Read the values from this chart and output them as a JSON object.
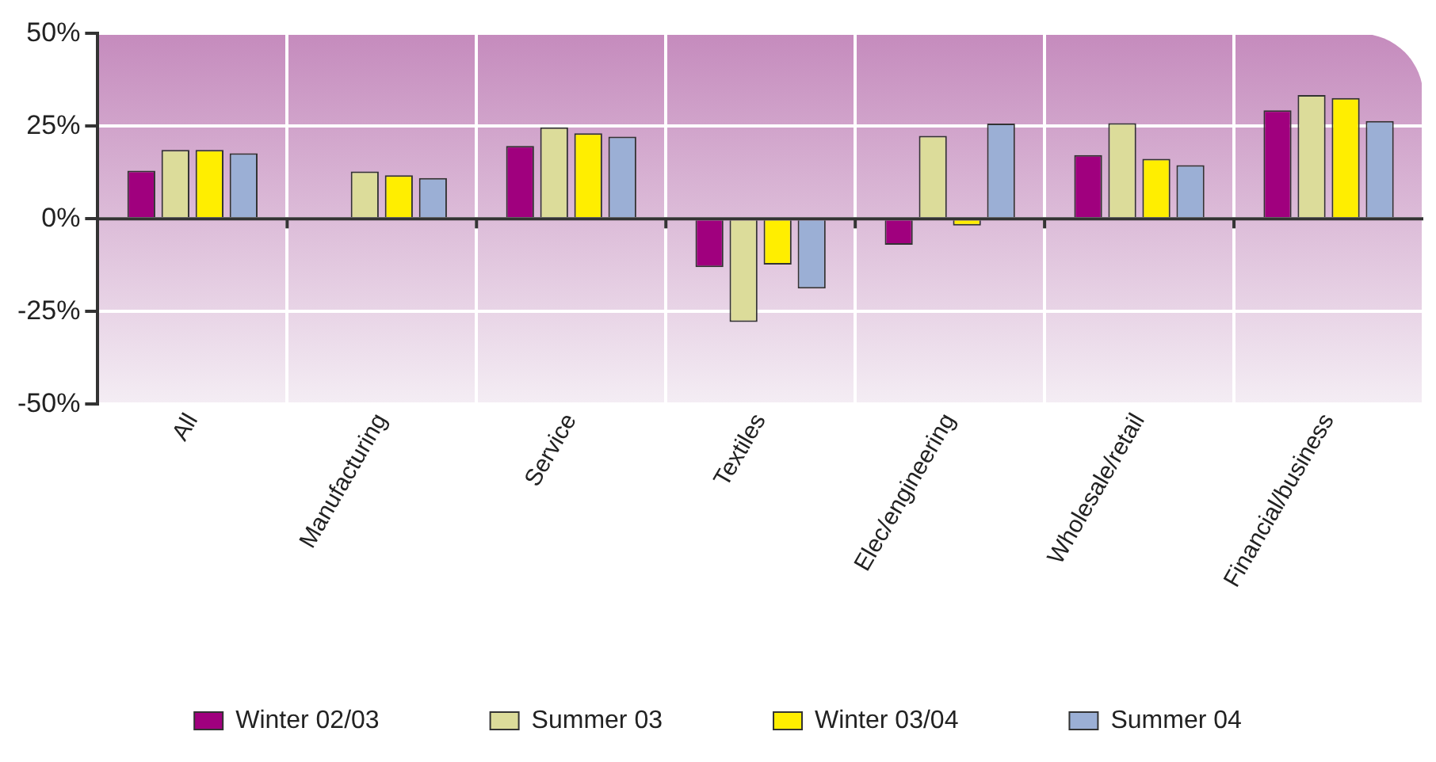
{
  "chart_data": {
    "type": "bar",
    "categories": [
      "All",
      "Manufacturing",
      "Service",
      "Textiles",
      "Elec/engineering",
      "Wholesale/retail",
      "Financial/business"
    ],
    "series": [
      {
        "name": "Winter 02/03",
        "color": "#a0007e",
        "values": [
          13.0,
          0,
          19.7,
          -13.0,
          -7.0,
          17.2,
          29.3
        ]
      },
      {
        "name": "Summer 03",
        "color": "#dcdc9a",
        "values": [
          18.6,
          12.8,
          24.7,
          -27.8,
          22.4,
          25.8,
          33.4
        ]
      },
      {
        "name": "Winter 03/04",
        "color": "#ffee00",
        "values": [
          18.6,
          11.8,
          23.1,
          -12.3,
          -1.8,
          16.2,
          32.6
        ]
      },
      {
        "name": "Summer 04",
        "color": "#9bafd5",
        "values": [
          17.7,
          11.0,
          22.2,
          -18.8,
          25.7,
          14.5,
          26.4
        ]
      }
    ],
    "ylim": [
      -50,
      50
    ],
    "yticks": [
      {
        "value": -50,
        "label": "-50%"
      },
      {
        "value": -25,
        "label": "-25%"
      },
      {
        "value": 0,
        "label": "0%"
      },
      {
        "value": 25,
        "label": "25%"
      },
      {
        "value": 50,
        "label": "50%"
      }
    ],
    "grid": true,
    "legend": "bottom"
  }
}
